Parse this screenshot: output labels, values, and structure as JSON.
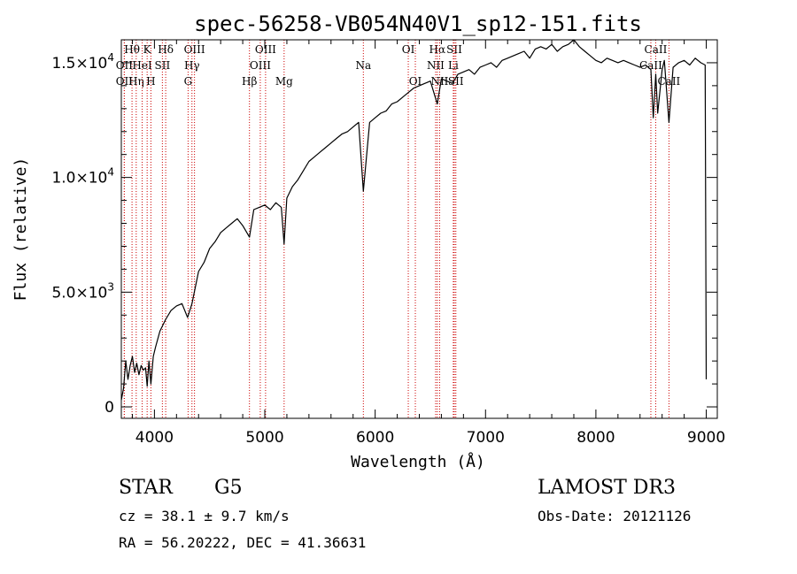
{
  "chart_data": {
    "type": "line",
    "title": "spec-56258-VB054N40V1_sp12-151.fits",
    "xlabel": "Wavelength (Å)",
    "ylabel": "Flux (relative)",
    "xlim": [
      3700,
      9100
    ],
    "ylim": [
      -500,
      16000
    ],
    "x_ticks": [
      4000,
      5000,
      6000,
      7000,
      8000,
      9000
    ],
    "x_tick_labels": [
      "4000",
      "5000",
      "6000",
      "7000",
      "8000",
      "9000"
    ],
    "y_ticks": [
      {
        "value": 0,
        "mantissa": "0",
        "exponent": ""
      },
      {
        "value": 5000,
        "mantissa": "5.0×10",
        "exponent": "3"
      },
      {
        "value": 10000,
        "mantissa": "1.0×10",
        "exponent": "4"
      },
      {
        "value": 15000,
        "mantissa": "1.5×10",
        "exponent": "4"
      }
    ],
    "series": [
      {
        "name": "flux",
        "x": [
          3700,
          3720,
          3740,
          3760,
          3780,
          3800,
          3820,
          3840,
          3860,
          3880,
          3900,
          3920,
          3934,
          3950,
          3968,
          3990,
          4010,
          4050,
          4100,
          4150,
          4200,
          4250,
          4300,
          4340,
          4400,
          4450,
          4500,
          4550,
          4600,
          4650,
          4700,
          4750,
          4800,
          4861,
          4900,
          4950,
          5000,
          5050,
          5100,
          5150,
          5175,
          5200,
          5250,
          5300,
          5350,
          5400,
          5450,
          5500,
          5550,
          5600,
          5650,
          5700,
          5750,
          5800,
          5850,
          5893,
          5950,
          6000,
          6050,
          6100,
          6150,
          6200,
          6250,
          6300,
          6350,
          6400,
          6450,
          6500,
          6563,
          6600,
          6650,
          6700,
          6750,
          6800,
          6850,
          6900,
          6950,
          7000,
          7050,
          7100,
          7150,
          7200,
          7250,
          7300,
          7350,
          7400,
          7450,
          7500,
          7550,
          7600,
          7650,
          7700,
          7750,
          7800,
          7850,
          7900,
          7950,
          8000,
          8050,
          8100,
          8150,
          8200,
          8250,
          8300,
          8350,
          8400,
          8450,
          8498,
          8520,
          8542,
          8560,
          8600,
          8620,
          8662,
          8700,
          8750,
          8800,
          8850,
          8900,
          8950,
          8990,
          9000
        ],
        "values": [
          300,
          800,
          2000,
          1200,
          1800,
          2200,
          1500,
          1900,
          1400,
          1800,
          1600,
          1700,
          900,
          2000,
          1000,
          2200,
          2600,
          3300,
          3800,
          4200,
          4400,
          4500,
          3900,
          4500,
          5900,
          6300,
          6900,
          7200,
          7600,
          7800,
          8000,
          8200,
          7900,
          7400,
          8600,
          8700,
          8800,
          8600,
          8900,
          8700,
          7100,
          9100,
          9600,
          9900,
          10300,
          10700,
          10900,
          11100,
          11300,
          11500,
          11700,
          11900,
          12000,
          12200,
          12400,
          9400,
          12400,
          12600,
          12800,
          12900,
          13200,
          13300,
          13500,
          13700,
          13900,
          14000,
          14100,
          14200,
          13200,
          14300,
          14200,
          14100,
          14500,
          14600,
          14700,
          14500,
          14800,
          14900,
          15000,
          14800,
          15100,
          15200,
          15300,
          15400,
          15500,
          15200,
          15600,
          15700,
          15600,
          15800,
          15500,
          15700,
          15800,
          16000,
          15700,
          15500,
          15300,
          15100,
          15000,
          15200,
          15100,
          15000,
          15100,
          15000,
          14900,
          14800,
          14900,
          14700,
          12600,
          14500,
          12800,
          14700,
          15100,
          12400,
          14800,
          15000,
          15100,
          14900,
          15200,
          15000,
          14900,
          1200
        ]
      }
    ],
    "lines": [
      {
        "label": "Hθ",
        "x": 3797,
        "row": 0
      },
      {
        "label": "OII",
        "x": 3727,
        "row": 1
      },
      {
        "label": "OII",
        "x": 3727,
        "row": 2
      },
      {
        "label": "Hη",
        "x": 3835,
        "row": 2
      },
      {
        "label": "HeI",
        "x": 3889,
        "row": 1
      },
      {
        "label": "K",
        "x": 3934,
        "row": 0
      },
      {
        "label": "H",
        "x": 3968,
        "row": 2
      },
      {
        "label": "SII",
        "x": 4072,
        "row": 1
      },
      {
        "label": "Hδ",
        "x": 4102,
        "row": 0
      },
      {
        "label": "OIII",
        "x": 4363,
        "row": 0
      },
      {
        "label": "Hγ",
        "x": 4340,
        "row": 1
      },
      {
        "label": "G",
        "x": 4305,
        "row": 2
      },
      {
        "label": "Hβ",
        "x": 4861,
        "row": 2
      },
      {
        "label": "OIII",
        "x": 5007,
        "row": 0
      },
      {
        "label": "OIII",
        "x": 4959,
        "row": 1
      },
      {
        "label": "Mg",
        "x": 5175,
        "row": 2
      },
      {
        "label": "Na",
        "x": 5893,
        "row": 1
      },
      {
        "label": "OI",
        "x": 6300,
        "row": 0
      },
      {
        "label": "OI",
        "x": 6364,
        "row": 2
      },
      {
        "label": "Hα",
        "x": 6563,
        "row": 0
      },
      {
        "label": "NII",
        "x": 6548,
        "row": 1
      },
      {
        "label": "NII",
        "x": 6584,
        "row": 2
      },
      {
        "label": "SII",
        "x": 6717,
        "row": 0
      },
      {
        "label": "SII",
        "x": 6731,
        "row": 2
      },
      {
        "label": "Li",
        "x": 6708,
        "row": 1
      },
      {
        "label": "CaII",
        "x": 8542,
        "row": 0
      },
      {
        "label": "CaII",
        "x": 8498,
        "row": 1
      },
      {
        "label": "CaII",
        "x": 8662,
        "row": 2
      }
    ]
  },
  "info": {
    "class": "STAR",
    "subclass": "G5",
    "survey": "LAMOST DR3",
    "cz": "cz = 38.1 ± 9.7 km/s",
    "obs_date": "Obs-Date: 20121126",
    "coords": "RA =  56.20222, DEC =  41.36631"
  },
  "colors": {
    "line_marker": "#cc0000",
    "spectrum": "#000000"
  }
}
